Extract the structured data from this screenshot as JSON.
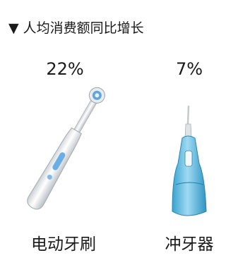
{
  "header": {
    "title": "▼ 人均消费额同比增长"
  },
  "items": [
    {
      "value_label": "22%",
      "label": "电动牙刷"
    },
    {
      "value_label": "7%",
      "label": "冲牙器"
    }
  ]
}
